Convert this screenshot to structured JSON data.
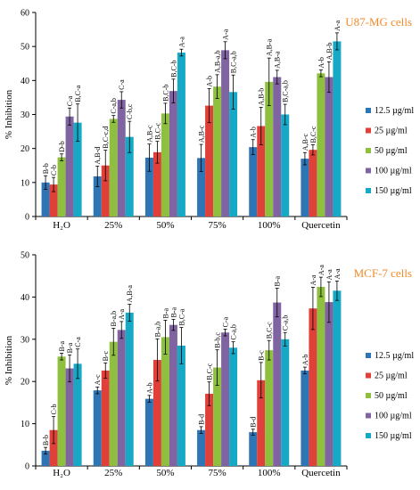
{
  "colors": {
    "series": [
      "#2e75b6",
      "#e0403a",
      "#8fbf3f",
      "#8064a2",
      "#16a9c6"
    ],
    "title": "#f28a2b",
    "axis": "#000000",
    "errorbar": "#000000"
  },
  "chart_data": [
    {
      "type": "bar",
      "title": "U87-MG cells",
      "ylabel": "% Inhibition",
      "ylim": [
        0,
        60
      ],
      "yticks": [
        0,
        10,
        20,
        30,
        40,
        50,
        60
      ],
      "categories": [
        "H₂O",
        "25%",
        "50%",
        "75%",
        "100%",
        "Quercetin"
      ],
      "legend_position": "right",
      "grid": false,
      "series": [
        {
          "name": "12.5 µg/ml",
          "values": [
            10.0,
            11.8,
            17.3,
            17.2,
            20.4,
            17.0
          ],
          "errors": [
            2.0,
            3.0,
            4.0,
            4.0,
            2.2,
            1.8
          ],
          "labels": [
            "B-b",
            "A,B-d",
            "A,B-c",
            "A,B-c",
            "A-b",
            "A,B-c"
          ]
        },
        {
          "name": "25 µg/ml",
          "values": [
            9.4,
            15.0,
            18.9,
            32.6,
            26.6,
            19.6
          ],
          "errors": [
            2.1,
            4.5,
            3.2,
            5.0,
            5.5,
            1.5
          ],
          "labels": [
            "C-b",
            "B,C-c,d",
            "B,C-c",
            "A-b",
            "A,B-b",
            "B,C-c"
          ]
        },
        {
          "name": "50 µg/ml",
          "values": [
            17.4,
            28.7,
            30.3,
            38.2,
            39.6,
            42.1
          ],
          "errors": [
            1.0,
            1.0,
            3.0,
            3.5,
            7.0,
            1.0
          ],
          "labels": [
            "D-b",
            "C-a,b",
            "B,C-b",
            "A,B-a,b",
            "A,B-a",
            "A-b"
          ]
        },
        {
          "name": "100 µg/ml",
          "values": [
            29.4,
            34.3,
            36.9,
            48.9,
            41.0,
            41.0
          ],
          "errors": [
            2.5,
            2.4,
            3.5,
            2.5,
            2.0,
            4.5
          ],
          "labels": [
            "C-a",
            "C-a",
            "B,C-b",
            "A-a",
            "A,B-a",
            "A,B-b"
          ]
        },
        {
          "name": "150 µg/ml",
          "values": [
            27.6,
            23.4,
            48.2,
            36.6,
            30.0,
            51.5
          ],
          "errors": [
            5.5,
            4.6,
            1.0,
            5.0,
            3.0,
            2.5
          ],
          "labels": [
            "B,C-a",
            "C-b,c",
            "A-a",
            "B,C-a,b",
            "B,C-a,b",
            "A-a"
          ]
        }
      ]
    },
    {
      "type": "bar",
      "title": "MCF-7 cells",
      "ylabel": "% Inhibition",
      "ylim": [
        0,
        50
      ],
      "yticks": [
        0,
        10,
        20,
        30,
        40,
        50
      ],
      "categories": [
        "H₂O",
        "25%",
        "50%",
        "75%",
        "100%",
        "Quercetin"
      ],
      "legend_position": "right",
      "grid": false,
      "series": [
        {
          "name": "12.5 µg/ml",
          "values": [
            3.6,
            17.9,
            15.9,
            8.5,
            8.0,
            22.6
          ],
          "errors": [
            0.8,
            0.8,
            0.8,
            0.8,
            0.7,
            0.8
          ],
          "labels": [
            "B-b",
            "A-c",
            "A-b",
            "B-d",
            "B-d",
            "A-b"
          ]
        },
        {
          "name": "25 µg/ml",
          "values": [
            8.5,
            22.6,
            25.1,
            17.1,
            20.3,
            37.3
          ],
          "errors": [
            3.2,
            1.8,
            5.0,
            2.8,
            4.2,
            5.0
          ],
          "labels": [
            "C-b",
            "B-c",
            "B-a,b",
            "B,C-c",
            "B-c",
            "A-a"
          ]
        },
        {
          "name": "50 µg/ml",
          "values": [
            25.9,
            29.4,
            30.5,
            23.3,
            27.4,
            42.4
          ],
          "errors": [
            0.8,
            3.2,
            4.0,
            4.2,
            2.3,
            2.3
          ],
          "labels": [
            "B-a",
            "B-a,b",
            "B-a",
            "B-b,c",
            "B,C-c",
            "A-a"
          ]
        },
        {
          "name": "100 µg/ml",
          "values": [
            23.1,
            32.2,
            33.4,
            31.6,
            38.7,
            38.8
          ],
          "errors": [
            3.2,
            2.0,
            1.3,
            0.8,
            3.4,
            4.8
          ],
          "labels": [
            "B-a",
            "A-a",
            "B-a",
            "C-a",
            "B-a",
            "A-a"
          ]
        },
        {
          "name": "150 µg/ml",
          "values": [
            24.2,
            36.3,
            28.5,
            28.0,
            30.0,
            41.5
          ],
          "errors": [
            3.5,
            2.0,
            4.3,
            1.4,
            1.6,
            2.3
          ],
          "labels": [
            "C-a",
            "A,B-a",
            "B,C-a",
            "C-a,b",
            "C-a,b",
            "A-a"
          ]
        }
      ]
    }
  ]
}
